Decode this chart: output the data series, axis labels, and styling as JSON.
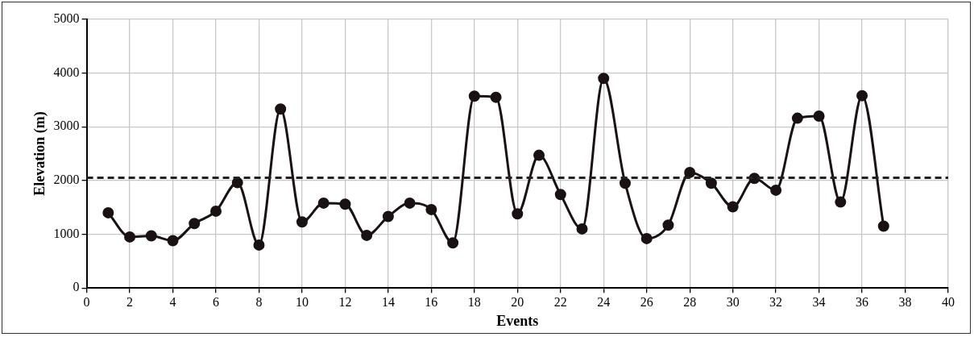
{
  "chart_data": {
    "type": "line",
    "xlabel": "Events",
    "ylabel": "Elevation (m)",
    "x": [
      1,
      2,
      3,
      4,
      5,
      6,
      7,
      8,
      9,
      10,
      11,
      12,
      13,
      14,
      15,
      16,
      17,
      18,
      19,
      20,
      21,
      22,
      23,
      24,
      25,
      26,
      27,
      28,
      29,
      30,
      31,
      32,
      33,
      34,
      35,
      36,
      37
    ],
    "series": [
      {
        "color": "#1a1212",
        "values": [
          1400,
          950,
          970,
          880,
          1200,
          1430,
          1960,
          800,
          3330,
          1230,
          1580,
          1560,
          980,
          1330,
          1580,
          1460,
          840,
          3570,
          3550,
          1380,
          2470,
          1740,
          1100,
          3900,
          1950,
          920,
          1170,
          2150,
          1950,
          1510,
          2040,
          1820,
          3160,
          3200,
          1600,
          3580,
          1150
        ]
      }
    ],
    "xlim": [
      0,
      40
    ],
    "xticks": [
      0,
      2,
      4,
      6,
      8,
      10,
      12,
      14,
      16,
      18,
      20,
      22,
      24,
      26,
      28,
      30,
      32,
      34,
      36,
      38,
      40
    ],
    "ylim": [
      0,
      5000
    ],
    "yticks": [
      0,
      1000,
      2000,
      3000,
      4000,
      5000
    ],
    "ref_lines": [
      {
        "axis": "y",
        "value": 2050,
        "color": "#222222",
        "line_style": "dashed"
      }
    ],
    "grid": true,
    "legend": false,
    "marker": "circle",
    "line_style": "solid"
  }
}
